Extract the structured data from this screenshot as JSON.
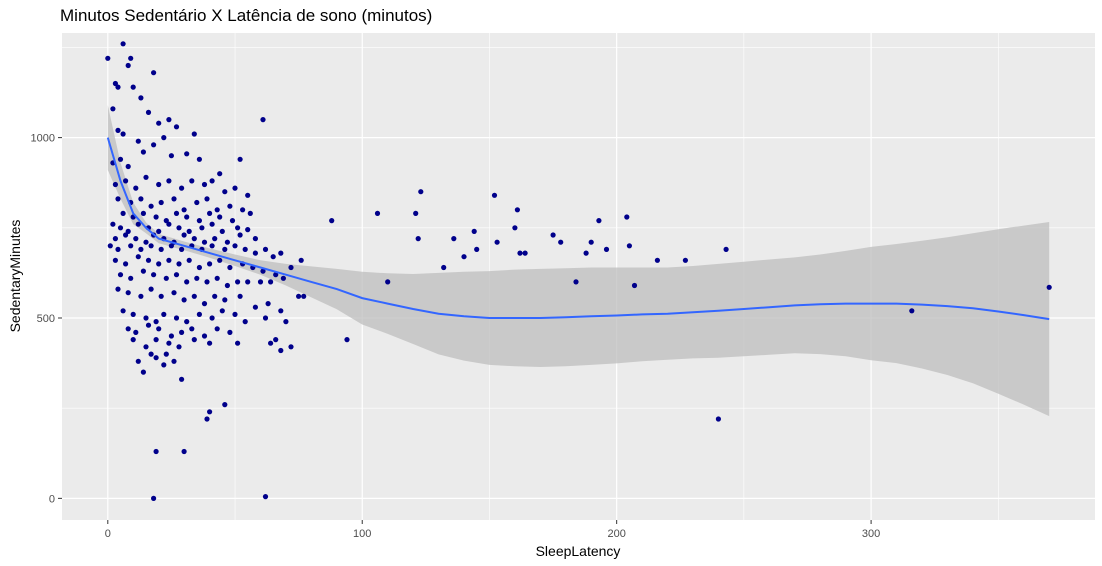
{
  "chart_data": {
    "type": "scatter",
    "title": "Minutos Sedentário X Latência de sono (minutos)",
    "xlabel": "SleepLatency",
    "ylabel": "SedentaryMinutes",
    "xlim": [
      -18,
      388
    ],
    "ylim": [
      -60,
      1290
    ],
    "xticks": [
      0,
      100,
      200,
      300
    ],
    "xtick_labels": [
      "0",
      "100",
      "200",
      "300"
    ],
    "yticks": [
      0,
      500,
      1000
    ],
    "ytick_labels": [
      "0",
      "500",
      "1000"
    ],
    "grid": true,
    "legend": "none",
    "colors": {
      "points": "#00008b",
      "smooth_line": "#3366ff",
      "confidence_band": "#bdbdbd",
      "panel_background": "#ebebeb",
      "grid": "#ffffff"
    },
    "points": [
      [
        0,
        1220
      ],
      [
        2,
        1080
      ],
      [
        3,
        1150
      ],
      [
        4,
        1140
      ],
      [
        6,
        1260
      ],
      [
        8,
        1200
      ],
      [
        9,
        1220
      ],
      [
        10,
        1140
      ],
      [
        13,
        1110
      ],
      [
        16,
        1070
      ],
      [
        20,
        1040
      ],
      [
        24,
        1050
      ],
      [
        18,
        1180
      ],
      [
        4,
        1020
      ],
      [
        6,
        1010
      ],
      [
        12,
        990
      ],
      [
        22,
        1000
      ],
      [
        27,
        1030
      ],
      [
        34,
        1010
      ],
      [
        61,
        1050
      ],
      [
        2,
        930
      ],
      [
        5,
        940
      ],
      [
        8,
        920
      ],
      [
        14,
        960
      ],
      [
        18,
        980
      ],
      [
        25,
        950
      ],
      [
        31,
        955
      ],
      [
        36,
        940
      ],
      [
        52,
        940
      ],
      [
        44,
        900
      ],
      [
        3,
        870
      ],
      [
        7,
        880
      ],
      [
        11,
        860
      ],
      [
        15,
        890
      ],
      [
        20,
        870
      ],
      [
        24,
        880
      ],
      [
        29,
        860
      ],
      [
        33,
        880
      ],
      [
        38,
        870
      ],
      [
        41,
        880
      ],
      [
        46,
        850
      ],
      [
        50,
        860
      ],
      [
        55,
        840
      ],
      [
        4,
        830
      ],
      [
        9,
        820
      ],
      [
        13,
        830
      ],
      [
        17,
        810
      ],
      [
        21,
        820
      ],
      [
        26,
        830
      ],
      [
        30,
        800
      ],
      [
        35,
        820
      ],
      [
        39,
        830
      ],
      [
        43,
        800
      ],
      [
        48,
        810
      ],
      [
        53,
        800
      ],
      [
        6,
        790
      ],
      [
        10,
        780
      ],
      [
        14,
        790
      ],
      [
        19,
        780
      ],
      [
        23,
        770
      ],
      [
        27,
        790
      ],
      [
        31,
        780
      ],
      [
        36,
        770
      ],
      [
        40,
        790
      ],
      [
        44,
        780
      ],
      [
        49,
        770
      ],
      [
        56,
        790
      ],
      [
        2,
        760
      ],
      [
        5,
        750
      ],
      [
        8,
        740
      ],
      [
        12,
        760
      ],
      [
        16,
        750
      ],
      [
        20,
        740
      ],
      [
        24,
        760
      ],
      [
        28,
        750
      ],
      [
        32,
        740
      ],
      [
        37,
        750
      ],
      [
        41,
        760
      ],
      [
        45,
        740
      ],
      [
        51,
        750
      ],
      [
        55,
        745
      ],
      [
        3,
        720
      ],
      [
        7,
        730
      ],
      [
        11,
        720
      ],
      [
        15,
        710
      ],
      [
        18,
        730
      ],
      [
        22,
        720
      ],
      [
        26,
        710
      ],
      [
        30,
        730
      ],
      [
        34,
        720
      ],
      [
        38,
        710
      ],
      [
        42,
        720
      ],
      [
        47,
        710
      ],
      [
        52,
        730
      ],
      [
        58,
        720
      ],
      [
        1,
        700
      ],
      [
        4,
        690
      ],
      [
        9,
        700
      ],
      [
        13,
        690
      ],
      [
        17,
        700
      ],
      [
        21,
        690
      ],
      [
        25,
        700
      ],
      [
        29,
        690
      ],
      [
        33,
        700
      ],
      [
        37,
        690
      ],
      [
        41,
        700
      ],
      [
        46,
        690
      ],
      [
        50,
        700
      ],
      [
        54,
        690
      ],
      [
        58,
        680
      ],
      [
        62,
        690
      ],
      [
        65,
        670
      ],
      [
        68,
        680
      ],
      [
        3,
        660
      ],
      [
        7,
        650
      ],
      [
        12,
        670
      ],
      [
        16,
        660
      ],
      [
        20,
        650
      ],
      [
        24,
        660
      ],
      [
        28,
        650
      ],
      [
        32,
        660
      ],
      [
        36,
        640
      ],
      [
        40,
        650
      ],
      [
        44,
        660
      ],
      [
        48,
        640
      ],
      [
        53,
        650
      ],
      [
        57,
        640
      ],
      [
        61,
        630
      ],
      [
        66,
        620
      ],
      [
        72,
        640
      ],
      [
        76,
        660
      ],
      [
        5,
        620
      ],
      [
        9,
        610
      ],
      [
        14,
        630
      ],
      [
        18,
        620
      ],
      [
        23,
        610
      ],
      [
        27,
        620
      ],
      [
        31,
        600
      ],
      [
        35,
        610
      ],
      [
        39,
        600
      ],
      [
        43,
        610
      ],
      [
        47,
        590
      ],
      [
        51,
        600
      ],
      [
        55,
        600
      ],
      [
        60,
        600
      ],
      [
        64,
        600
      ],
      [
        69,
        610
      ],
      [
        77,
        560
      ],
      [
        4,
        580
      ],
      [
        8,
        570
      ],
      [
        13,
        560
      ],
      [
        17,
        580
      ],
      [
        21,
        560
      ],
      [
        26,
        570
      ],
      [
        30,
        550
      ],
      [
        34,
        560
      ],
      [
        38,
        540
      ],
      [
        42,
        560
      ],
      [
        46,
        550
      ],
      [
        52,
        560
      ],
      [
        58,
        530
      ],
      [
        63,
        540
      ],
      [
        68,
        520
      ],
      [
        75,
        560
      ],
      [
        6,
        520
      ],
      [
        10,
        510
      ],
      [
        15,
        500
      ],
      [
        19,
        490
      ],
      [
        22,
        510
      ],
      [
        27,
        500
      ],
      [
        31,
        490
      ],
      [
        36,
        510
      ],
      [
        41,
        500
      ],
      [
        45,
        520
      ],
      [
        50,
        510
      ],
      [
        54,
        490
      ],
      [
        62,
        500
      ],
      [
        70,
        490
      ],
      [
        8,
        470
      ],
      [
        11,
        460
      ],
      [
        16,
        480
      ],
      [
        20,
        470
      ],
      [
        25,
        450
      ],
      [
        29,
        460
      ],
      [
        33,
        470
      ],
      [
        38,
        450
      ],
      [
        43,
        470
      ],
      [
        48,
        460
      ],
      [
        10,
        440
      ],
      [
        15,
        420
      ],
      [
        19,
        440
      ],
      [
        24,
        430
      ],
      [
        28,
        420
      ],
      [
        34,
        440
      ],
      [
        40,
        430
      ],
      [
        51,
        430
      ],
      [
        64,
        430
      ],
      [
        68,
        410
      ],
      [
        72,
        420
      ],
      [
        66,
        440
      ],
      [
        12,
        380
      ],
      [
        17,
        400
      ],
      [
        22,
        370
      ],
      [
        26,
        380
      ],
      [
        14,
        350
      ],
      [
        19,
        390
      ],
      [
        23,
        400
      ],
      [
        29,
        330
      ],
      [
        39,
        220
      ],
      [
        40,
        240
      ],
      [
        46,
        260
      ],
      [
        19,
        130
      ],
      [
        30,
        130
      ],
      [
        18,
        0
      ],
      [
        62,
        5
      ],
      [
        88,
        770
      ],
      [
        94,
        440
      ],
      [
        106,
        790
      ],
      [
        110,
        600
      ],
      [
        121,
        790
      ],
      [
        122,
        720
      ],
      [
        123,
        850
      ],
      [
        132,
        640
      ],
      [
        136,
        720
      ],
      [
        140,
        670
      ],
      [
        144,
        740
      ],
      [
        145,
        690
      ],
      [
        152,
        840
      ],
      [
        153,
        710
      ],
      [
        160,
        750
      ],
      [
        161,
        800
      ],
      [
        162,
        680
      ],
      [
        164,
        680
      ],
      [
        175,
        730
      ],
      [
        178,
        710
      ],
      [
        184,
        600
      ],
      [
        188,
        680
      ],
      [
        190,
        710
      ],
      [
        193,
        770
      ],
      [
        196,
        690
      ],
      [
        204,
        780
      ],
      [
        205,
        700
      ],
      [
        207,
        590
      ],
      [
        216,
        660
      ],
      [
        227,
        660
      ],
      [
        240,
        220
      ],
      [
        243,
        690
      ],
      [
        316,
        520
      ],
      [
        370,
        585
      ]
    ],
    "smooth": [
      [
        0,
        1000
      ],
      [
        5,
        880
      ],
      [
        10,
        790
      ],
      [
        15,
        750
      ],
      [
        20,
        720
      ],
      [
        30,
        700
      ],
      [
        40,
        680
      ],
      [
        50,
        660
      ],
      [
        60,
        640
      ],
      [
        70,
        620
      ],
      [
        80,
        600
      ],
      [
        90,
        580
      ],
      [
        100,
        555
      ],
      [
        110,
        540
      ],
      [
        120,
        525
      ],
      [
        130,
        512
      ],
      [
        140,
        505
      ],
      [
        150,
        500
      ],
      [
        160,
        500
      ],
      [
        170,
        500
      ],
      [
        180,
        502
      ],
      [
        190,
        505
      ],
      [
        200,
        507
      ],
      [
        210,
        510
      ],
      [
        220,
        512
      ],
      [
        230,
        516
      ],
      [
        240,
        520
      ],
      [
        250,
        525
      ],
      [
        260,
        530
      ],
      [
        270,
        535
      ],
      [
        280,
        538
      ],
      [
        290,
        540
      ],
      [
        300,
        540
      ],
      [
        310,
        540
      ],
      [
        320,
        537
      ],
      [
        330,
        533
      ],
      [
        340,
        527
      ],
      [
        350,
        518
      ],
      [
        360,
        508
      ],
      [
        370,
        497
      ]
    ],
    "band_upper": [
      [
        0,
        1090
      ],
      [
        5,
        930
      ],
      [
        10,
        820
      ],
      [
        15,
        765
      ],
      [
        20,
        733
      ],
      [
        30,
        712
      ],
      [
        40,
        693
      ],
      [
        50,
        676
      ],
      [
        60,
        660
      ],
      [
        70,
        650
      ],
      [
        80,
        643
      ],
      [
        90,
        636
      ],
      [
        100,
        628
      ],
      [
        110,
        624
      ],
      [
        120,
        622
      ],
      [
        130,
        625
      ],
      [
        140,
        628
      ],
      [
        150,
        630
      ],
      [
        160,
        634
      ],
      [
        170,
        636
      ],
      [
        180,
        638
      ],
      [
        190,
        640
      ],
      [
        200,
        640
      ],
      [
        210,
        640
      ],
      [
        220,
        640
      ],
      [
        230,
        644
      ],
      [
        240,
        650
      ],
      [
        250,
        656
      ],
      [
        260,
        662
      ],
      [
        270,
        668
      ],
      [
        280,
        676
      ],
      [
        290,
        686
      ],
      [
        300,
        697
      ],
      [
        310,
        705
      ],
      [
        320,
        714
      ],
      [
        330,
        724
      ],
      [
        340,
        735
      ],
      [
        350,
        746
      ],
      [
        360,
        756
      ],
      [
        370,
        766
      ]
    ],
    "band_lower": [
      [
        0,
        910
      ],
      [
        5,
        830
      ],
      [
        10,
        760
      ],
      [
        15,
        735
      ],
      [
        20,
        707
      ],
      [
        30,
        688
      ],
      [
        40,
        667
      ],
      [
        50,
        644
      ],
      [
        60,
        620
      ],
      [
        70,
        590
      ],
      [
        80,
        557
      ],
      [
        90,
        524
      ],
      [
        100,
        482
      ],
      [
        110,
        456
      ],
      [
        120,
        428
      ],
      [
        130,
        399
      ],
      [
        140,
        382
      ],
      [
        150,
        370
      ],
      [
        160,
        366
      ],
      [
        170,
        364
      ],
      [
        180,
        366
      ],
      [
        190,
        370
      ],
      [
        200,
        374
      ],
      [
        210,
        380
      ],
      [
        220,
        384
      ],
      [
        230,
        388
      ],
      [
        240,
        390
      ],
      [
        250,
        394
      ],
      [
        260,
        398
      ],
      [
        270,
        402
      ],
      [
        280,
        400
      ],
      [
        290,
        394
      ],
      [
        300,
        383
      ],
      [
        310,
        375
      ],
      [
        320,
        360
      ],
      [
        330,
        342
      ],
      [
        340,
        319
      ],
      [
        350,
        290
      ],
      [
        360,
        260
      ],
      [
        370,
        228
      ]
    ]
  }
}
